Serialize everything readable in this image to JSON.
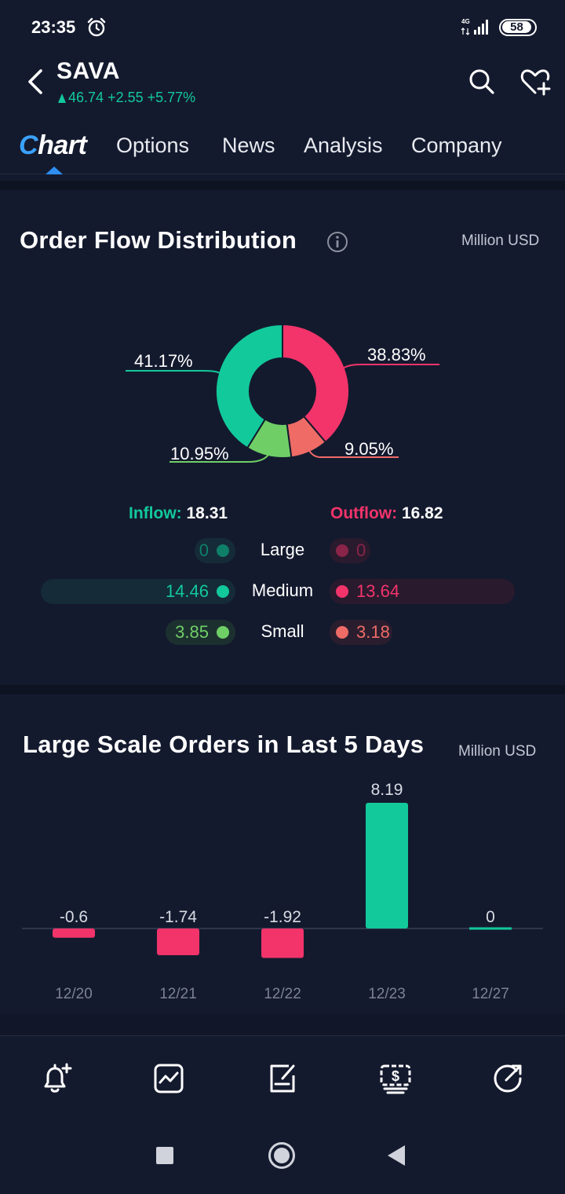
{
  "status": {
    "time": "23:35",
    "network": "4G",
    "battery": "58"
  },
  "header": {
    "ticker": "SAVA",
    "price": "46.74",
    "change": "+2.55",
    "change_pct": "+5.77%"
  },
  "tabs": [
    "Chart",
    "Options",
    "News",
    "Analysis",
    "Company"
  ],
  "order_flow": {
    "title": "Order Flow Distribution",
    "unit": "Million USD",
    "slices": [
      {
        "label": "38.83%",
        "value": 38.83,
        "color": "#f2346a"
      },
      {
        "label": "9.05%",
        "value": 9.05,
        "color": "#ee6b66"
      },
      {
        "label": "10.95%",
        "value": 10.95,
        "color": "#6fcf66"
      },
      {
        "label": "41.17%",
        "value": 41.17,
        "color": "#12c99b"
      }
    ],
    "inflow_label": "Inflow:",
    "inflow_value": "18.31",
    "outflow_label": "Outflow:",
    "outflow_value": "16.82",
    "rows": [
      {
        "category": "Large",
        "inflow": "0",
        "outflow": "0"
      },
      {
        "category": "Medium",
        "inflow": "14.46",
        "outflow": "13.64"
      },
      {
        "category": "Small",
        "inflow": "3.85",
        "outflow": "3.18"
      }
    ]
  },
  "large_orders": {
    "title": "Large Scale Orders in Last 5 Days",
    "unit": "Million USD"
  },
  "chart_data": {
    "type": "bar",
    "categories": [
      "12/20",
      "12/21",
      "12/22",
      "12/23",
      "12/27"
    ],
    "values": [
      -0.6,
      -1.74,
      -1.92,
      8.19,
      0
    ],
    "value_labels": [
      "-0.6",
      "-1.74",
      "-1.92",
      "8.19",
      "0"
    ],
    "positive_color": "#12c99b",
    "negative_color": "#f2346a"
  },
  "colors": {
    "background": "#141a2e",
    "inflow": "#12c99b",
    "outflow": "#f2346a",
    "small_inflow": "#6fcf66",
    "small_outflow": "#ee6b66",
    "accent": "#2e8ef2"
  },
  "toolbar": [
    "bell-plus-icon",
    "trend-chart-icon",
    "edit-note-icon",
    "dollar-stack-icon",
    "share-icon"
  ]
}
